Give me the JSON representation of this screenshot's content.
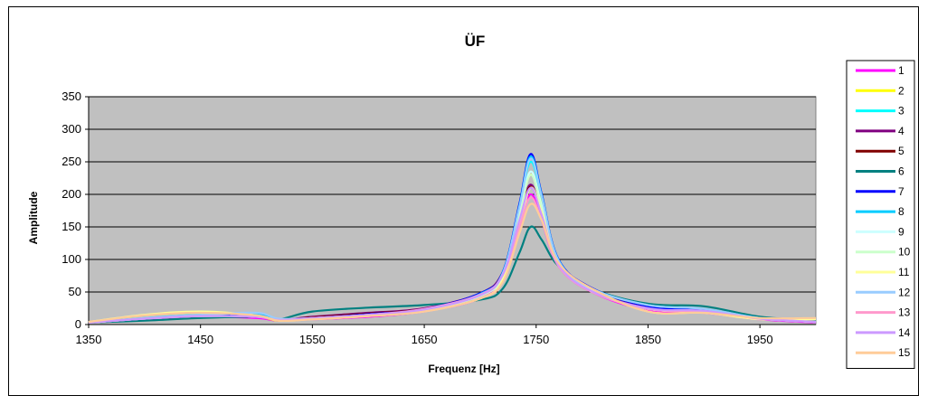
{
  "chart_data": {
    "type": "line",
    "title": "ÜF",
    "xlabel": "Frequenz [Hz]",
    "ylabel": "Amplitude",
    "xlim": [
      1350,
      2000
    ],
    "ylim": [
      0,
      350
    ],
    "x_ticks": [
      1350,
      1450,
      1550,
      1650,
      1750,
      1850,
      1950
    ],
    "y_ticks": [
      0,
      50,
      100,
      150,
      200,
      250,
      300,
      350
    ],
    "grid": "horizontal",
    "plot_background": "#c0c0c0",
    "legend_position": "right",
    "series": [
      {
        "name": "1",
        "color": "#ff00ff",
        "x": [
          1350,
          1400,
          1450,
          1500,
          1520,
          1550,
          1600,
          1650,
          1700,
          1720,
          1735,
          1745,
          1755,
          1770,
          1800,
          1850,
          1900,
          1950,
          2000
        ],
        "y": [
          3,
          8,
          12,
          10,
          6,
          8,
          12,
          20,
          40,
          70,
          150,
          200,
          160,
          90,
          50,
          22,
          18,
          8,
          3
        ]
      },
      {
        "name": "2",
        "color": "#ffff00",
        "x": [
          1350,
          1400,
          1450,
          1500,
          1520,
          1550,
          1600,
          1650,
          1700,
          1720,
          1735,
          1745,
          1755,
          1770,
          1800,
          1850,
          1900,
          1950,
          2000
        ],
        "y": [
          3,
          10,
          14,
          12,
          6,
          9,
          14,
          22,
          45,
          75,
          170,
          230,
          185,
          95,
          52,
          24,
          20,
          9,
          4
        ]
      },
      {
        "name": "3",
        "color": "#00ffff",
        "x": [
          1350,
          1400,
          1450,
          1500,
          1520,
          1550,
          1600,
          1650,
          1700,
          1720,
          1735,
          1745,
          1755,
          1770,
          1800,
          1850,
          1900,
          1950,
          2000
        ],
        "y": [
          3,
          10,
          15,
          16,
          8,
          10,
          15,
          23,
          47,
          78,
          180,
          250,
          195,
          98,
          55,
          28,
          22,
          10,
          4
        ]
      },
      {
        "name": "4",
        "color": "#800080",
        "x": [
          1350,
          1400,
          1450,
          1500,
          1520,
          1550,
          1600,
          1650,
          1700,
          1720,
          1735,
          1745,
          1755,
          1770,
          1800,
          1850,
          1900,
          1950,
          2000
        ],
        "y": [
          4,
          9,
          14,
          13,
          7,
          12,
          18,
          25,
          48,
          80,
          165,
          215,
          170,
          92,
          52,
          26,
          22,
          10,
          4
        ]
      },
      {
        "name": "5",
        "color": "#800000",
        "x": [
          1350,
          1400,
          1450,
          1500,
          1520,
          1550,
          1600,
          1650,
          1700,
          1720,
          1735,
          1745,
          1755,
          1770,
          1800,
          1850,
          1900,
          1950,
          2000
        ],
        "y": [
          4,
          9,
          13,
          12,
          7,
          11,
          17,
          24,
          47,
          78,
          162,
          212,
          168,
          91,
          51,
          25,
          21,
          10,
          4
        ]
      },
      {
        "name": "6",
        "color": "#008080",
        "x": [
          1350,
          1400,
          1450,
          1500,
          1520,
          1550,
          1600,
          1650,
          1700,
          1720,
          1735,
          1745,
          1755,
          1770,
          1800,
          1850,
          1900,
          1950,
          2000
        ],
        "y": [
          3,
          6,
          10,
          12,
          8,
          20,
          26,
          30,
          38,
          55,
          110,
          150,
          130,
          90,
          55,
          32,
          28,
          12,
          6
        ]
      },
      {
        "name": "7",
        "color": "#0000ff",
        "x": [
          1350,
          1400,
          1450,
          1500,
          1520,
          1550,
          1600,
          1650,
          1700,
          1720,
          1735,
          1745,
          1755,
          1770,
          1800,
          1850,
          1900,
          1950,
          2000
        ],
        "y": [
          3,
          9,
          14,
          15,
          8,
          10,
          16,
          24,
          48,
          80,
          185,
          262,
          200,
          100,
          56,
          28,
          22,
          10,
          4
        ]
      },
      {
        "name": "8",
        "color": "#00ccff",
        "x": [
          1350,
          1400,
          1450,
          1500,
          1520,
          1550,
          1600,
          1650,
          1700,
          1720,
          1735,
          1745,
          1755,
          1770,
          1800,
          1850,
          1900,
          1950,
          2000
        ],
        "y": [
          3,
          10,
          15,
          17,
          8,
          10,
          15,
          23,
          47,
          79,
          182,
          258,
          198,
          99,
          55,
          30,
          24,
          10,
          4
        ]
      },
      {
        "name": "9",
        "color": "#ccffff",
        "x": [
          1350,
          1400,
          1450,
          1500,
          1520,
          1550,
          1600,
          1650,
          1700,
          1720,
          1735,
          1745,
          1755,
          1770,
          1800,
          1850,
          1900,
          1950,
          2000
        ],
        "y": [
          3,
          9,
          13,
          12,
          7,
          9,
          14,
          22,
          44,
          74,
          168,
          235,
          182,
          94,
          52,
          24,
          20,
          9,
          4
        ]
      },
      {
        "name": "10",
        "color": "#ccffcc",
        "x": [
          1350,
          1400,
          1450,
          1500,
          1520,
          1550,
          1600,
          1650,
          1700,
          1720,
          1735,
          1745,
          1755,
          1770,
          1800,
          1850,
          1900,
          1950,
          2000
        ],
        "y": [
          3,
          9,
          13,
          12,
          7,
          9,
          14,
          22,
          44,
          74,
          165,
          230,
          178,
          93,
          51,
          24,
          20,
          9,
          4
        ]
      },
      {
        "name": "11",
        "color": "#ffff99",
        "x": [
          1350,
          1400,
          1450,
          1500,
          1520,
          1550,
          1600,
          1650,
          1700,
          1720,
          1735,
          1745,
          1755,
          1770,
          1800,
          1850,
          1900,
          1950,
          2000
        ],
        "y": [
          4,
          15,
          20,
          14,
          6,
          8,
          13,
          20,
          40,
          68,
          150,
          210,
          172,
          95,
          55,
          20,
          18,
          8,
          8
        ]
      },
      {
        "name": "12",
        "color": "#99ccff",
        "x": [
          1350,
          1400,
          1450,
          1500,
          1520,
          1550,
          1600,
          1650,
          1700,
          1720,
          1735,
          1745,
          1755,
          1770,
          1800,
          1850,
          1900,
          1950,
          2000
        ],
        "y": [
          3,
          10,
          15,
          18,
          9,
          10,
          15,
          23,
          46,
          78,
          180,
          255,
          196,
          98,
          55,
          30,
          24,
          10,
          4
        ]
      },
      {
        "name": "13",
        "color": "#ff99cc",
        "x": [
          1350,
          1400,
          1450,
          1500,
          1520,
          1550,
          1600,
          1650,
          1700,
          1720,
          1735,
          1745,
          1755,
          1770,
          1800,
          1850,
          1900,
          1950,
          2000
        ],
        "y": [
          3,
          9,
          13,
          12,
          7,
          10,
          15,
          24,
          46,
          76,
          150,
          195,
          160,
          90,
          50,
          24,
          20,
          9,
          4
        ]
      },
      {
        "name": "14",
        "color": "#cc99ff",
        "x": [
          1350,
          1400,
          1450,
          1500,
          1520,
          1550,
          1600,
          1650,
          1700,
          1720,
          1735,
          1745,
          1755,
          1770,
          1800,
          1850,
          1900,
          1950,
          2000
        ],
        "y": [
          3,
          9,
          13,
          12,
          7,
          10,
          15,
          23,
          45,
          76,
          160,
          210,
          168,
          92,
          51,
          25,
          21,
          9,
          4
        ]
      },
      {
        "name": "15",
        "color": "#ffcc99",
        "x": [
          1350,
          1400,
          1450,
          1500,
          1520,
          1550,
          1600,
          1650,
          1700,
          1720,
          1735,
          1745,
          1755,
          1770,
          1800,
          1850,
          1900,
          1950,
          2000
        ],
        "y": [
          4,
          14,
          18,
          14,
          6,
          8,
          13,
          20,
          40,
          65,
          140,
          185,
          160,
          95,
          55,
          20,
          18,
          10,
          10
        ]
      }
    ]
  }
}
